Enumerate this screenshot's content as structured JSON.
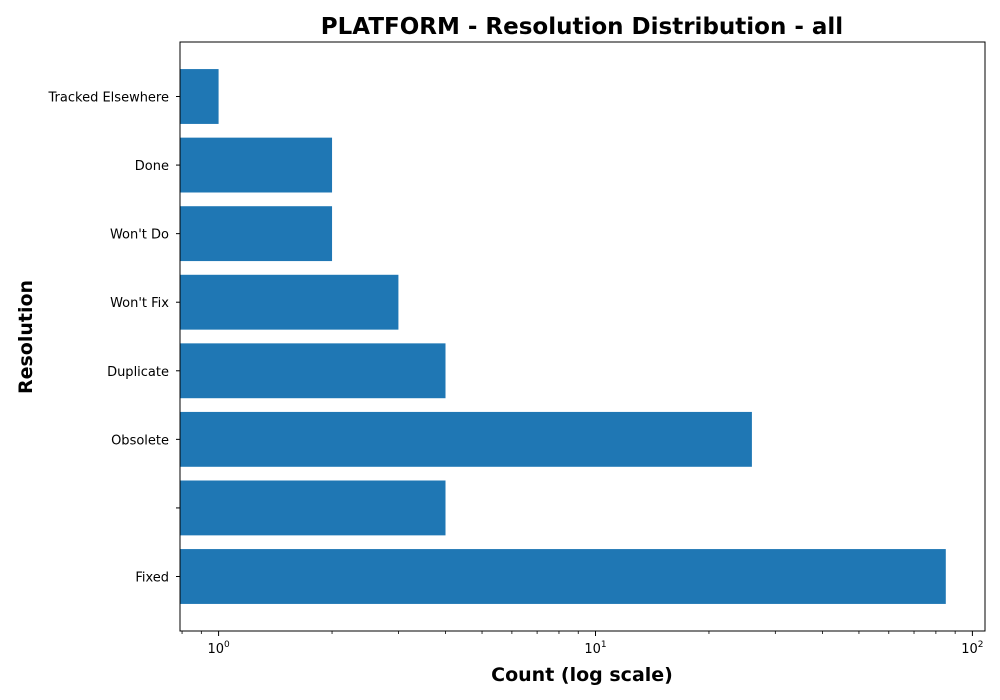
{
  "chart_data": {
    "type": "bar",
    "orientation": "horizontal",
    "title": "PLATFORM - Resolution Distribution - all",
    "xlabel": "Count (log scale)",
    "ylabel": "Resolution",
    "x_scale": "log",
    "xlim": [
      0.79,
      108
    ],
    "x_ticks": [
      {
        "value": 1,
        "base": "10",
        "exp": "0"
      },
      {
        "value": 10,
        "base": "10",
        "exp": "1"
      },
      {
        "value": 100,
        "base": "10",
        "exp": "2"
      }
    ],
    "categories": [
      "Fixed",
      "",
      "Obsolete",
      "Duplicate",
      "Won't Fix",
      "Won't Do",
      "Done",
      "Tracked Elsewhere"
    ],
    "values": [
      85,
      4,
      26,
      4,
      3,
      2,
      2,
      1
    ],
    "bar_color": "#1f77b4",
    "grid": false,
    "legend": "none"
  }
}
